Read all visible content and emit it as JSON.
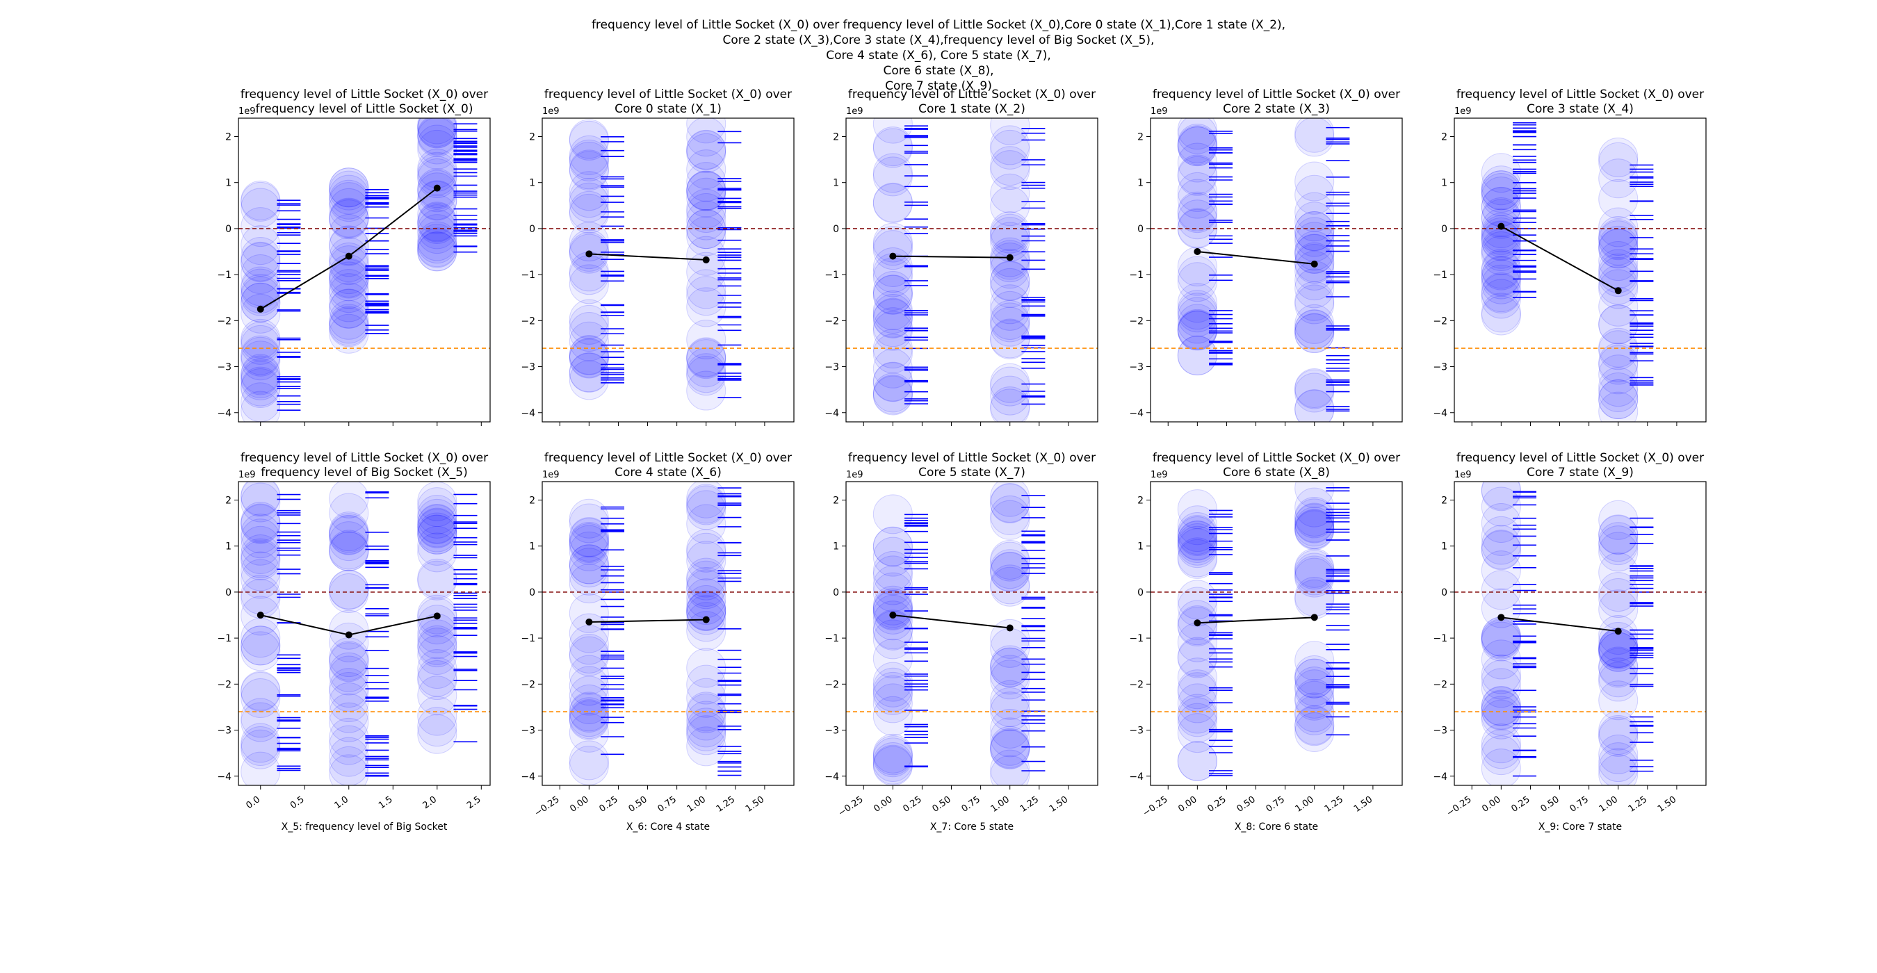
{
  "figure": {
    "suptitle_lines": [
      "frequency level of Little Socket (X_0) over frequency level of Little Socket (X_0),Core 0 state (X_1),Core 1 state (X_2),",
      "Core 2 state (X_3),Core 3 state (X_4),frequency level of Big Socket (X_5),",
      "Core 4 state (X_6), Core 5 state (X_7),",
      "Core 6 state (X_8),",
      "Core 7 state (X_9)"
    ],
    "y_exponent_label": "1e9",
    "colors": {
      "bubble": "#0000ff",
      "rug": "#0000ff",
      "mean_line": "#000000",
      "ref_line_zero": "#8b1a1a",
      "ref_line_low": "#ff8c00"
    }
  },
  "chart_data": [
    {
      "type": "scatter",
      "row": 0,
      "col": 0,
      "title_lines": [
        "frequency level of Little Socket (X_0) over",
        "frequency level of Little Socket (X_0)"
      ],
      "xlabel": "",
      "xlim": [
        -0.25,
        2.6
      ],
      "ylim": [
        -4.2,
        2.4
      ],
      "xticks": [
        0,
        0.5,
        1,
        1.5,
        2,
        2.5
      ],
      "xtick_labels": [
        "0.0",
        "0.5",
        "1.0",
        "1.5",
        "2.0",
        "2.5"
      ],
      "show_xtick_labels": false,
      "yticks": [
        -4,
        -3,
        -2,
        -1,
        0,
        1,
        2
      ],
      "categories": [
        0,
        1,
        2
      ],
      "category_ranges": [
        [
          -4.0,
          0.7
        ],
        [
          -2.3,
          0.9
        ],
        [
          -0.6,
          2.3
        ]
      ],
      "means": [
        -1.75,
        -0.6,
        0.88
      ],
      "ref_lines": [
        0,
        -2.6
      ]
    },
    {
      "type": "scatter",
      "row": 0,
      "col": 1,
      "title_lines": [
        "frequency level of Little Socket (X_0) over",
        "Core 0 state (X_1)"
      ],
      "xlabel": "",
      "xlim": [
        -0.4,
        1.75
      ],
      "ylim": [
        -4.2,
        2.4
      ],
      "xticks": [
        -0.25,
        0,
        0.25,
        0.5,
        0.75,
        1,
        1.25,
        1.5
      ],
      "xtick_labels": [
        "−0.25",
        "0.00",
        "0.25",
        "0.50",
        "0.75",
        "1.00",
        "1.25",
        "1.50"
      ],
      "show_xtick_labels": false,
      "yticks": [
        -4,
        -3,
        -2,
        -1,
        0,
        1,
        2
      ],
      "categories": [
        0,
        1
      ],
      "category_ranges": [
        [
          -3.5,
          2.0
        ],
        [
          -4.0,
          2.3
        ]
      ],
      "means": [
        -0.55,
        -0.68
      ],
      "ref_lines": [
        0,
        -2.6
      ]
    },
    {
      "type": "scatter",
      "row": 0,
      "col": 2,
      "title_lines": [
        "frequency level of Little Socket (X_0) over",
        "Core 1 state (X_2)"
      ],
      "xlabel": "",
      "xlim": [
        -0.4,
        1.75
      ],
      "ylim": [
        -4.2,
        2.4
      ],
      "xticks": [
        -0.25,
        0,
        0.25,
        0.5,
        0.75,
        1,
        1.25,
        1.5
      ],
      "xtick_labels": [
        "−0.25",
        "0.00",
        "0.25",
        "0.50",
        "0.75",
        "1.00",
        "1.25",
        "1.50"
      ],
      "show_xtick_labels": false,
      "yticks": [
        -4,
        -3,
        -2,
        -1,
        0,
        1,
        2
      ],
      "categories": [
        0,
        1
      ],
      "category_ranges": [
        [
          -3.9,
          2.3
        ],
        [
          -4.0,
          2.3
        ]
      ],
      "means": [
        -0.6,
        -0.63
      ],
      "ref_lines": [
        0,
        -2.6
      ]
    },
    {
      "type": "scatter",
      "row": 0,
      "col": 3,
      "title_lines": [
        "frequency level of Little Socket (X_0) over",
        "Core 2 state (X_3)"
      ],
      "xlabel": "",
      "xlim": [
        -0.4,
        1.75
      ],
      "ylim": [
        -4.2,
        2.4
      ],
      "xticks": [
        -0.25,
        0,
        0.25,
        0.5,
        0.75,
        1,
        1.25,
        1.5
      ],
      "xtick_labels": [
        "−0.25",
        "0.00",
        "0.25",
        "0.50",
        "0.75",
        "1.00",
        "1.25",
        "1.50"
      ],
      "show_xtick_labels": false,
      "yticks": [
        -4,
        -3,
        -2,
        -1,
        0,
        1,
        2
      ],
      "categories": [
        0,
        1
      ],
      "category_ranges": [
        [
          -3.0,
          2.2
        ],
        [
          -4.0,
          2.3
        ]
      ],
      "means": [
        -0.5,
        -0.77
      ],
      "ref_lines": [
        0,
        -2.6
      ]
    },
    {
      "type": "scatter",
      "row": 0,
      "col": 4,
      "title_lines": [
        "frequency level of Little Socket (X_0) over",
        "Core 3 state (X_4)"
      ],
      "xlabel": "",
      "xlim": [
        -0.4,
        1.75
      ],
      "ylim": [
        -4.2,
        2.4
      ],
      "xticks": [
        -0.25,
        0,
        0.25,
        0.5,
        0.75,
        1,
        1.25,
        1.5
      ],
      "xtick_labels": [
        "−0.25",
        "0.00",
        "0.25",
        "0.50",
        "0.75",
        "1.00",
        "1.25",
        "1.50"
      ],
      "show_xtick_labels": false,
      "yticks": [
        -4,
        -3,
        -2,
        -1,
        0,
        1,
        2
      ],
      "categories": [
        0,
        1
      ],
      "category_ranges": [
        [
          -1.9,
          2.3
        ],
        [
          -4.0,
          1.9
        ]
      ],
      "means": [
        0.05,
        -1.35
      ],
      "ref_lines": [
        0,
        -2.6
      ]
    },
    {
      "type": "scatter",
      "row": 1,
      "col": 0,
      "title_lines": [
        "frequency level of Little Socket (X_0) over",
        "frequency level of Big Socket (X_5)"
      ],
      "xlabel": "X_5: frequency level of Big Socket",
      "xlim": [
        -0.25,
        2.6
      ],
      "ylim": [
        -4.2,
        2.4
      ],
      "xticks": [
        0,
        0.5,
        1,
        1.5,
        2,
        2.5
      ],
      "xtick_labels": [
        "0.0",
        "0.5",
        "1.0",
        "1.5",
        "2.0",
        "2.5"
      ],
      "show_xtick_labels": true,
      "yticks": [
        -4,
        -3,
        -2,
        -1,
        0,
        1,
        2
      ],
      "categories": [
        0,
        1,
        2
      ],
      "category_ranges": [
        [
          -3.9,
          2.2
        ],
        [
          -4.0,
          2.3
        ],
        [
          -3.3,
          2.2
        ]
      ],
      "means": [
        -0.5,
        -0.93,
        -0.52
      ],
      "ref_lines": [
        0,
        -2.6
      ]
    },
    {
      "type": "scatter",
      "row": 1,
      "col": 1,
      "title_lines": [
        "frequency level of Little Socket (X_0) over",
        "Core 4 state (X_6)"
      ],
      "xlabel": "X_6: Core 4 state",
      "xlim": [
        -0.4,
        1.75
      ],
      "ylim": [
        -4.2,
        2.4
      ],
      "xticks": [
        -0.25,
        0,
        0.25,
        0.5,
        0.75,
        1,
        1.25,
        1.5
      ],
      "xtick_labels": [
        "−0.25",
        "0.00",
        "0.25",
        "0.50",
        "0.75",
        "1.00",
        "1.25",
        "1.50"
      ],
      "show_xtick_labels": true,
      "yticks": [
        -4,
        -3,
        -2,
        -1,
        0,
        1,
        2
      ],
      "categories": [
        0,
        1
      ],
      "category_ranges": [
        [
          -3.9,
          2.0
        ],
        [
          -4.0,
          2.3
        ]
      ],
      "means": [
        -0.65,
        -0.6
      ],
      "ref_lines": [
        0,
        -2.6
      ]
    },
    {
      "type": "scatter",
      "row": 1,
      "col": 2,
      "title_lines": [
        "frequency level of Little Socket (X_0) over",
        "Core 5 state (X_7)"
      ],
      "xlabel": "X_7: Core 5 state",
      "xlim": [
        -0.4,
        1.75
      ],
      "ylim": [
        -4.2,
        2.4
      ],
      "xticks": [
        -0.25,
        0,
        0.25,
        0.5,
        0.75,
        1,
        1.25,
        1.5
      ],
      "xtick_labels": [
        "−0.25",
        "0.00",
        "0.25",
        "0.50",
        "0.75",
        "1.00",
        "1.25",
        "1.50"
      ],
      "show_xtick_labels": true,
      "yticks": [
        -4,
        -3,
        -2,
        -1,
        0,
        1,
        2
      ],
      "categories": [
        0,
        1
      ],
      "category_ranges": [
        [
          -3.8,
          1.7
        ],
        [
          -4.0,
          2.3
        ]
      ],
      "means": [
        -0.5,
        -0.78
      ],
      "ref_lines": [
        0,
        -2.6
      ]
    },
    {
      "type": "scatter",
      "row": 1,
      "col": 3,
      "title_lines": [
        "frequency level of Little Socket (X_0) over",
        "Core 6 state (X_8)"
      ],
      "xlabel": "X_8: Core 6 state",
      "xlim": [
        -0.4,
        1.75
      ],
      "ylim": [
        -4.2,
        2.4
      ],
      "xticks": [
        -0.25,
        0,
        0.25,
        0.5,
        0.75,
        1,
        1.25,
        1.5
      ],
      "xtick_labels": [
        "−0.25",
        "0.00",
        "0.25",
        "0.50",
        "0.75",
        "1.00",
        "1.25",
        "1.50"
      ],
      "show_xtick_labels": true,
      "yticks": [
        -4,
        -3,
        -2,
        -1,
        0,
        1,
        2
      ],
      "categories": [
        0,
        1
      ],
      "category_ranges": [
        [
          -4.0,
          2.0
        ],
        [
          -3.2,
          2.3
        ]
      ],
      "means": [
        -0.67,
        -0.55
      ],
      "ref_lines": [
        0,
        -2.6
      ]
    },
    {
      "type": "scatter",
      "row": 1,
      "col": 4,
      "title_lines": [
        "frequency level of Little Socket (X_0) over",
        "Core 7 state (X_9)"
      ],
      "xlabel": "X_9: Core 7 state",
      "xlim": [
        -0.4,
        1.75
      ],
      "ylim": [
        -4.2,
        2.4
      ],
      "xticks": [
        -0.25,
        0,
        0.25,
        0.5,
        0.75,
        1,
        1.25,
        1.5
      ],
      "xtick_labels": [
        "−0.25",
        "0.00",
        "0.25",
        "0.50",
        "0.75",
        "1.00",
        "1.25",
        "1.50"
      ],
      "show_xtick_labels": true,
      "yticks": [
        -4,
        -3,
        -2,
        -1,
        0,
        1,
        2
      ],
      "categories": [
        0,
        1
      ],
      "category_ranges": [
        [
          -4.0,
          2.3
        ],
        [
          -4.0,
          1.7
        ]
      ],
      "means": [
        -0.55,
        -0.85
      ],
      "ref_lines": [
        0,
        -2.6
      ]
    }
  ]
}
